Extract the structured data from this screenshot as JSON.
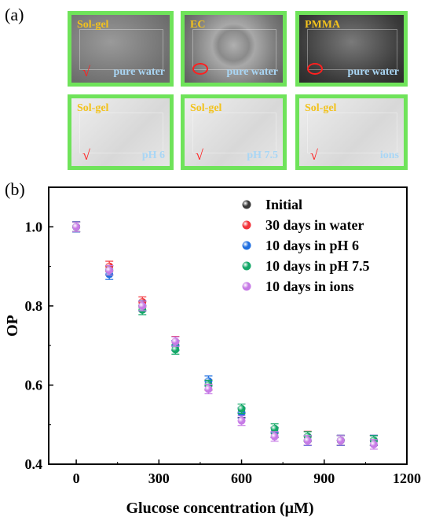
{
  "labels": {
    "panel_a": "(a)",
    "panel_b": "(b)"
  },
  "photos": [
    {
      "material": "Sol-gel",
      "condition": "pure water",
      "mark": "check",
      "tone": "gray"
    },
    {
      "material": "EC",
      "condition": "pure water",
      "mark": "circle",
      "tone": "gray-textured"
    },
    {
      "material": "PMMA",
      "condition": "pure water",
      "mark": "circle",
      "tone": "dark"
    },
    {
      "material": "Sol-gel",
      "condition": "pH 6",
      "mark": "check",
      "tone": "light"
    },
    {
      "material": "Sol-gel",
      "condition": "pH 7.5",
      "mark": "check",
      "tone": "light"
    },
    {
      "material": "Sol-gel",
      "condition": "ions",
      "mark": "check",
      "tone": "light"
    }
  ],
  "chart_data": {
    "type": "scatter",
    "xlabel": "Glucose concentration (μM)",
    "ylabel": "OP",
    "xlim": [
      -100,
      1200
    ],
    "ylim": [
      0.4,
      1.1
    ],
    "xticks": [
      0,
      300,
      600,
      900,
      1200
    ],
    "yticks": [
      0.4,
      0.6,
      0.8,
      1.0
    ],
    "ytick_labels": [
      "0.4",
      "0.6",
      "0.8",
      "1.0"
    ],
    "legend_position": "top-right",
    "x": [
      0,
      120,
      240,
      360,
      480,
      600,
      720,
      840,
      960,
      1080
    ],
    "series": [
      {
        "name": "Initial",
        "color": "#3a3a3a",
        "values": [
          1.0,
          0.89,
          0.8,
          0.7,
          0.6,
          0.53,
          0.48,
          0.46,
          0.46,
          0.46
        ],
        "err": 0.012
      },
      {
        "name": "30 days in water",
        "color": "#f2333a",
        "values": [
          1.0,
          0.9,
          0.81,
          0.71,
          0.6,
          0.53,
          0.48,
          0.47,
          0.46,
          0.46
        ],
        "err": 0.013
      },
      {
        "name": "10 days in pH 6",
        "color": "#1f6fe0",
        "values": [
          1.0,
          0.88,
          0.8,
          0.7,
          0.61,
          0.53,
          0.48,
          0.46,
          0.46,
          0.46
        ],
        "err": 0.013
      },
      {
        "name": "10 days in pH 7.5",
        "color": "#14a868",
        "values": [
          1.0,
          0.89,
          0.79,
          0.69,
          0.6,
          0.54,
          0.49,
          0.47,
          0.46,
          0.46
        ],
        "err": 0.012
      },
      {
        "name": "10 days in ions",
        "color": "#c77be6",
        "values": [
          1.0,
          0.89,
          0.8,
          0.71,
          0.59,
          0.51,
          0.47,
          0.46,
          0.46,
          0.45
        ],
        "err": 0.012
      }
    ]
  }
}
